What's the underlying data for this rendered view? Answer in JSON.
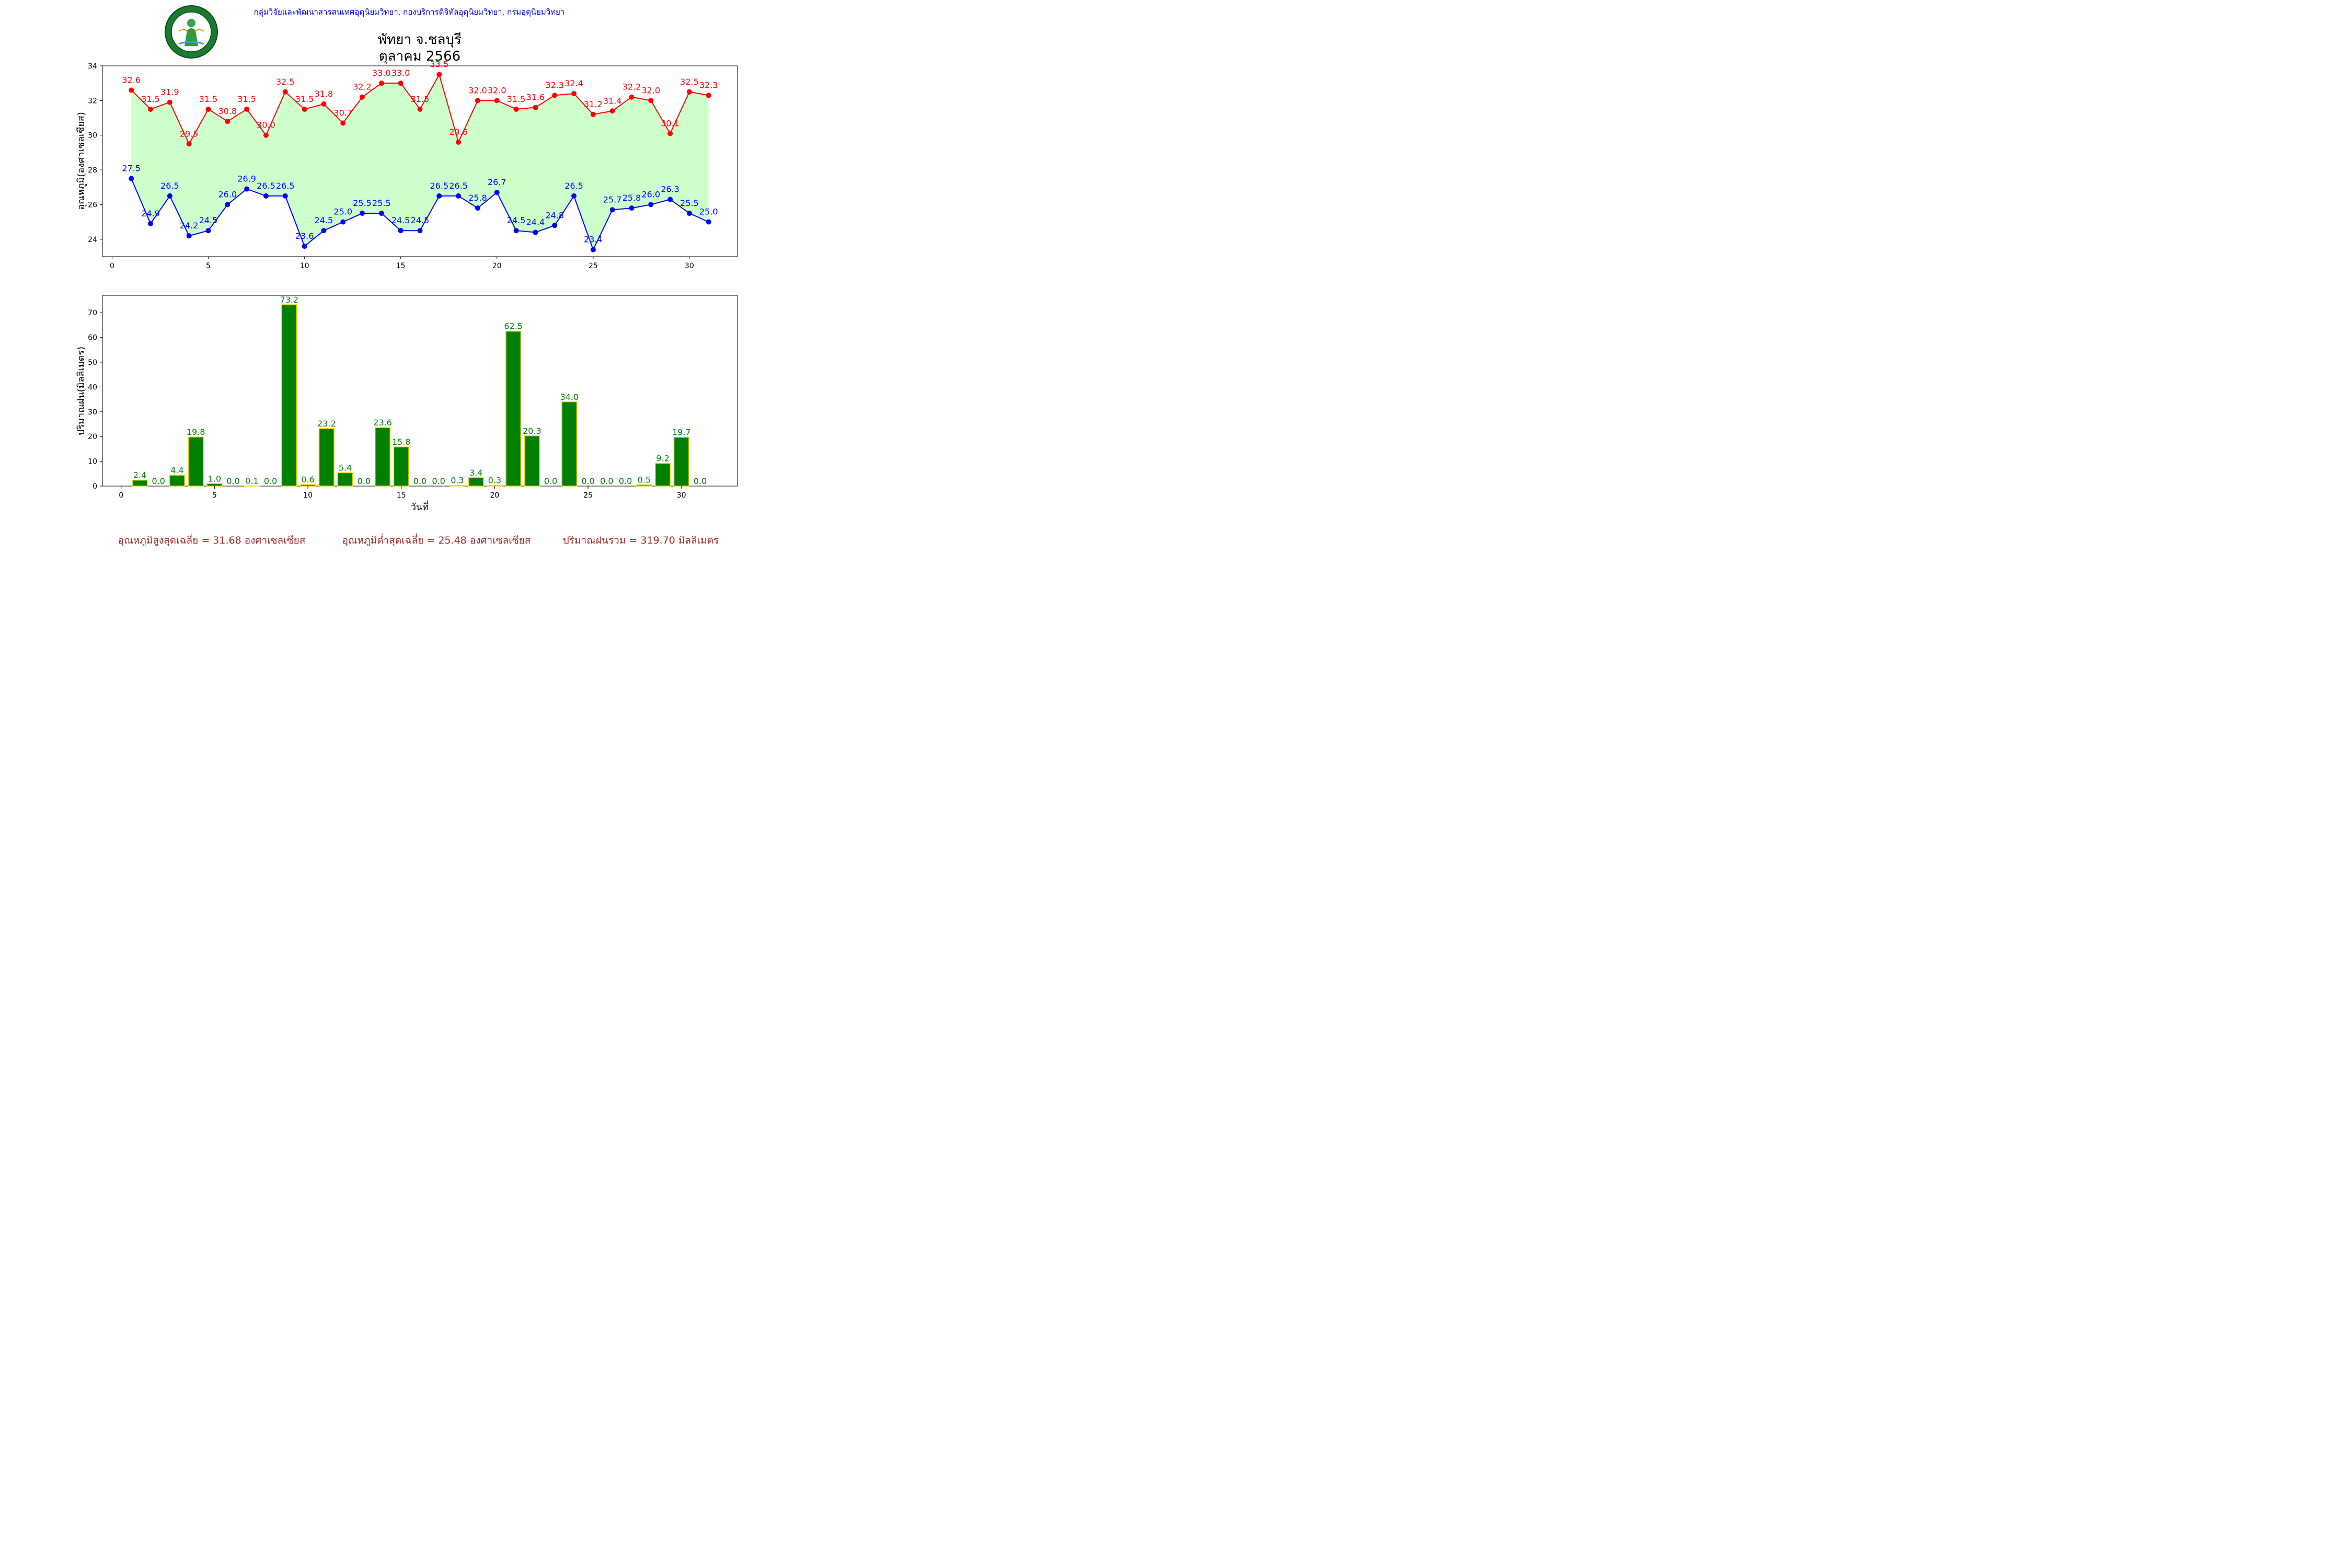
{
  "header": {
    "agency_line": "กลุ่มวิจัยและพัฒนาสารสนเทศอุตุนิยมวิทยา, กองบริการดิจิทัลอุตุนิยมวิทยา, กรมอุตุนิยมวิทยา",
    "logo_text": [
      "กรมอุตุนิยมวิทยา",
      "METEOROLOGICAL DEPARTMENT"
    ]
  },
  "colors": {
    "agency_text": "#0000ff",
    "max_line": "#ff0000",
    "min_line": "#0000ff",
    "fill": "#ccffcc",
    "bar_fill": "#008000",
    "bar_edge": "#ffd700",
    "bar_label": "#008000",
    "stats_text": "#a52a2a"
  },
  "chart_data": [
    {
      "type": "line",
      "title": "พัทยา จ.ชลบุรี",
      "subtitle": "ตุลาคม 2566",
      "xlabel": "",
      "ylabel": "อุณหภูมิ(องศาเซลเซียส)",
      "xlim": [
        -0.5,
        32.5
      ],
      "ylim": [
        23.0,
        34.0
      ],
      "xticks": [
        0,
        5,
        10,
        15,
        20,
        25,
        30
      ],
      "yticks": [
        24,
        26,
        28,
        30,
        32,
        34
      ],
      "grid": false,
      "fill_between": true,
      "x": [
        1,
        2,
        3,
        4,
        5,
        6,
        7,
        8,
        9,
        10,
        11,
        12,
        13,
        14,
        15,
        16,
        17,
        18,
        19,
        20,
        21,
        22,
        23,
        24,
        25,
        26,
        27,
        28,
        29,
        30,
        31
      ],
      "series": [
        {
          "values": [
            32.6,
            31.5,
            31.9,
            29.5,
            31.5,
            30.8,
            31.5,
            30.0,
            32.5,
            31.5,
            31.8,
            30.7,
            32.2,
            33.0,
            33.0,
            31.5,
            33.5,
            29.6,
            32.0,
            32.0,
            31.5,
            31.6,
            32.3,
            32.4,
            31.2,
            31.4,
            32.2,
            32.0,
            30.1,
            32.5,
            32.3
          ],
          "labels": [
            "32.6",
            "31.5",
            "31.9",
            "29.5",
            "31.5",
            "30.8",
            "31.5",
            "30.0",
            "32.5",
            "31.5",
            "31.8",
            "30.7",
            "32.2",
            "33.0",
            "33.0",
            "31.5",
            "33.5",
            "29.6",
            "32.0",
            "32.0",
            "31.5",
            "31.6",
            "32.3",
            "32.4",
            "31.2",
            "31.4",
            "32.2",
            "32.0",
            "30.1",
            "32.5",
            "32.3"
          ]
        },
        {
          "values": [
            27.5,
            24.9,
            26.5,
            24.2,
            24.5,
            26.0,
            26.9,
            26.5,
            26.5,
            23.6,
            24.5,
            25.0,
            25.5,
            25.5,
            24.5,
            24.5,
            26.5,
            26.5,
            25.8,
            26.7,
            24.5,
            24.4,
            24.8,
            26.5,
            23.4,
            25.7,
            25.8,
            26.0,
            26.3,
            25.5,
            25.0
          ],
          "labels": [
            "27.5",
            "24.9",
            "26.5",
            "24.2",
            "24.5",
            "26.0",
            "26.9",
            "26.5",
            "26.5",
            "23.6",
            "24.5",
            "25.0",
            "25.5",
            "25.5",
            "24.5",
            "24.5",
            "26.5",
            "26.5",
            "25.8",
            "26.7",
            "24.5",
            "24.4",
            "24.8",
            "26.5",
            "23.4",
            "25.7",
            "25.8",
            "26.0",
            "26.3",
            "25.5",
            "25.0"
          ]
        }
      ]
    },
    {
      "type": "bar",
      "title": "",
      "xlabel": "วันที่",
      "ylabel": "ปริมาณฝน(มิลลิเมตร)",
      "xlim": [
        -1,
        33
      ],
      "ylim": [
        0,
        77
      ],
      "xticks": [
        0,
        5,
        10,
        15,
        20,
        25,
        30
      ],
      "yticks": [
        0,
        10,
        20,
        30,
        40,
        50,
        60,
        70
      ],
      "grid": false,
      "x": [
        1,
        2,
        3,
        4,
        5,
        6,
        7,
        8,
        9,
        10,
        11,
        12,
        13,
        14,
        15,
        16,
        17,
        18,
        19,
        20,
        21,
        22,
        23,
        24,
        25,
        26,
        27,
        28,
        29,
        30,
        31
      ],
      "values": [
        2.4,
        0.0,
        4.4,
        19.8,
        1.0,
        0.0,
        0.1,
        0.0,
        73.2,
        0.6,
        23.2,
        5.4,
        0.0,
        23.6,
        15.8,
        0.0,
        0.0,
        0.3,
        3.4,
        0.3,
        62.5,
        20.3,
        0.0,
        34.0,
        0.0,
        0.0,
        0.0,
        0.5,
        9.2,
        19.7,
        0.0
      ],
      "labels": [
        "2.4",
        "0.0",
        "4.4",
        "19.8",
        "1.0",
        "0.0",
        "0.1",
        "0.0",
        "73.2",
        "0.6",
        "23.2",
        "5.4",
        "0.0",
        "23.6",
        "15.8",
        "0.0",
        "0.0",
        "0.3",
        "3.4",
        "0.3",
        "62.5",
        "20.3",
        "0.0",
        "34.0",
        "0.0",
        "0.0",
        "0.0",
        "0.5",
        "9.2",
        "19.7",
        "0.0"
      ]
    }
  ],
  "summary": {
    "avg_max": "อุณหภูมิสูงสุดเฉลี่ย = 31.68 องศาเซลเซียส",
    "avg_min": "อุณหภูมิต่ำสุดเฉลี่ย = 25.48 องศาเซลเซียส",
    "rain_total": "ปริมาณฝนรวม = 319.70 มิลลิเมตร"
  }
}
